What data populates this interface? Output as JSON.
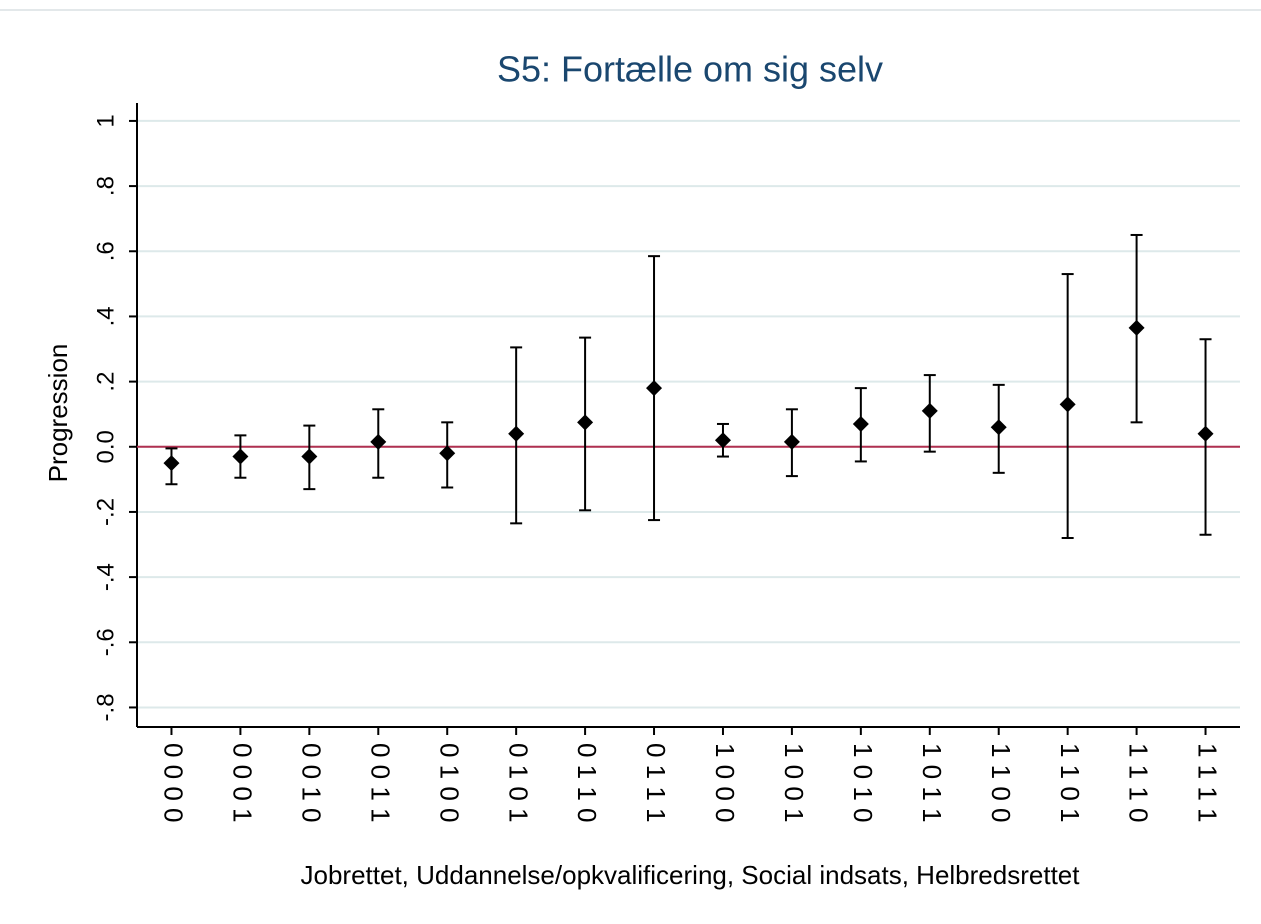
{
  "chart_data": {
    "type": "errorbar",
    "title": "S5: Fortælle om sig selv",
    "x_label": "Jobrettet, Uddannelse/opkvalificering, Social indsats, Helbredsrettet",
    "y_label": "Progression",
    "categories": [
      "0 0 0 0",
      "0 0 0 1",
      "0 0 1 0",
      "0 0 1 1",
      "0 1 0 0",
      "0 1 0 1",
      "0 1 1 0",
      "0 1 1 1",
      "1 0 0 0",
      "1 0 0 1",
      "1 0 1 0",
      "1 0 1 1",
      "1 1 0 0",
      "1 1 0 1",
      "1 1 1 0",
      "1 1 1 1"
    ],
    "series": [
      {
        "color": "#000000",
        "values": [
          -0.05,
          -0.03,
          -0.03,
          0.015,
          -0.02,
          0.04,
          0.075,
          0.18,
          0.02,
          0.015,
          0.07,
          0.11,
          0.06,
          0.13,
          0.365,
          0.04
        ],
        "lower": [
          -0.115,
          -0.095,
          -0.13,
          -0.095,
          -0.125,
          -0.235,
          -0.195,
          -0.225,
          -0.03,
          -0.09,
          -0.045,
          -0.015,
          -0.08,
          -0.28,
          0.075,
          -0.27
        ],
        "upper": [
          -0.005,
          0.035,
          0.065,
          0.115,
          0.075,
          0.305,
          0.335,
          0.585,
          0.07,
          0.115,
          0.18,
          0.22,
          0.19,
          0.53,
          0.65,
          0.33
        ]
      }
    ],
    "ylim": [
      -0.86,
      1.055
    ],
    "yticks": [
      {
        "value": -0.8,
        "label": "-.8"
      },
      {
        "value": -0.6,
        "label": "-.6"
      },
      {
        "value": -0.4,
        "label": "-.4"
      },
      {
        "value": -0.2,
        "label": "-.2"
      },
      {
        "value": 0,
        "label": "0.0"
      },
      {
        "value": 0.2,
        "label": ".2"
      },
      {
        "value": 0.4,
        "label": ".4"
      },
      {
        "value": 0.6,
        "label": ".6"
      },
      {
        "value": 0.8,
        "label": ".8"
      },
      1
    ],
    "hline": 0,
    "hline_color": "#b03050",
    "grid": true
  }
}
